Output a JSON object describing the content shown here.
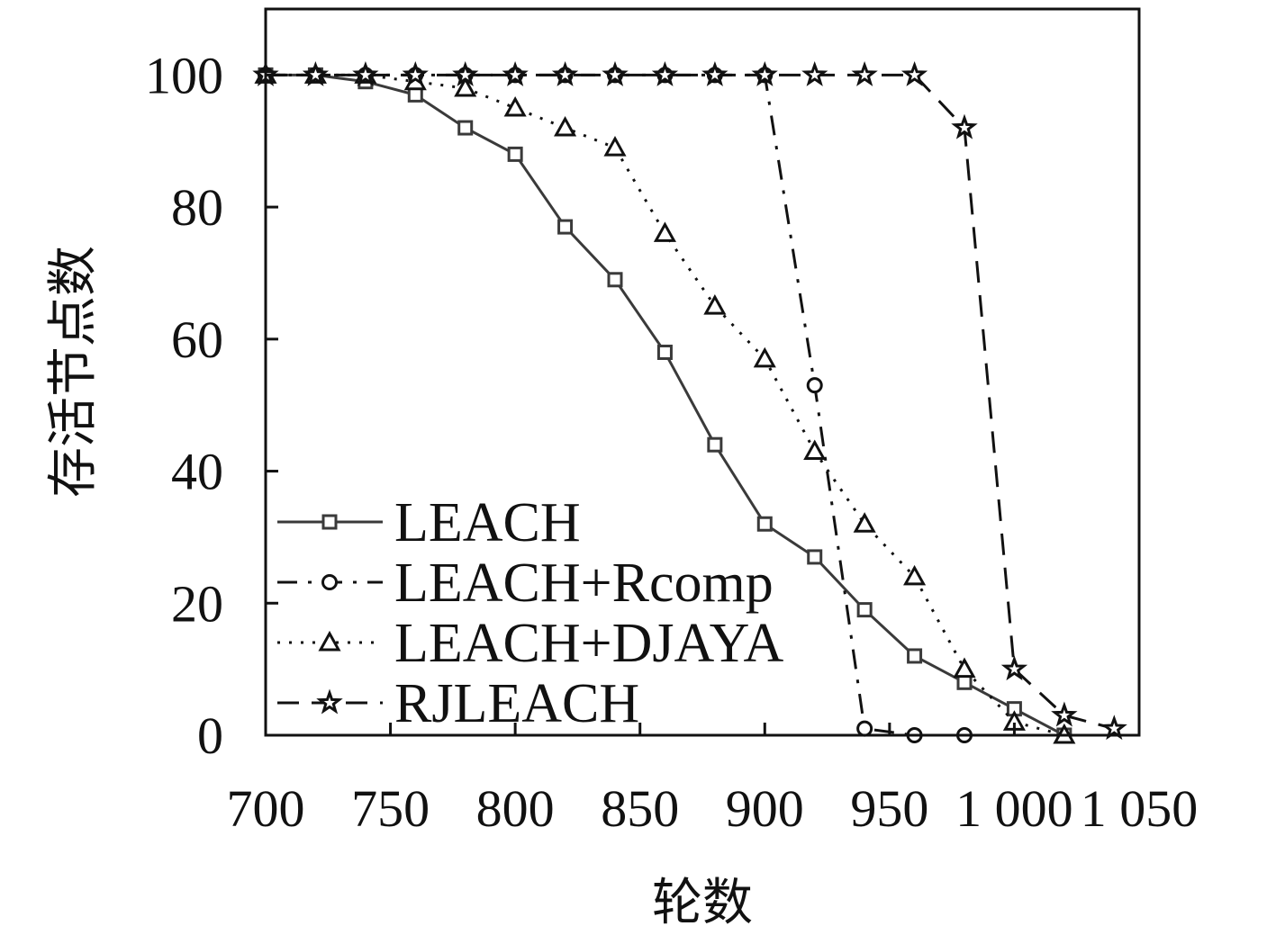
{
  "chart_data": {
    "type": "line",
    "xlabel": "轮数",
    "ylabel": "存活节点数",
    "xlim": [
      700,
      1050
    ],
    "ylim": [
      0,
      110
    ],
    "x_ticks": [
      700,
      750,
      800,
      850,
      900,
      950,
      1000,
      1050
    ],
    "x_tick_labels": [
      "700",
      "750",
      "800",
      "850",
      "900",
      "950",
      "1 000",
      "1 050"
    ],
    "y_ticks": [
      0,
      20,
      40,
      60,
      80,
      100
    ],
    "y_tick_labels": [
      "0",
      "20",
      "40",
      "60",
      "80",
      "100"
    ],
    "grid": false,
    "legend_position": "bottom-left",
    "series": [
      {
        "name": "LEACH",
        "line_style": "solid",
        "marker": "square",
        "color": "#3a3a3a",
        "points": [
          [
            700,
            100
          ],
          [
            720,
            100
          ],
          [
            740,
            99
          ],
          [
            760,
            97
          ],
          [
            780,
            92
          ],
          [
            800,
            88
          ],
          [
            820,
            77
          ],
          [
            840,
            69
          ],
          [
            860,
            58
          ],
          [
            880,
            44
          ],
          [
            900,
            32
          ],
          [
            920,
            27
          ],
          [
            940,
            19
          ],
          [
            960,
            12
          ],
          [
            980,
            8
          ],
          [
            1000,
            4
          ],
          [
            1020,
            0
          ]
        ]
      },
      {
        "name": "LEACH+Rcomp",
        "line_style": "dashdot",
        "marker": "circle",
        "color": "#111111",
        "points": [
          [
            700,
            100
          ],
          [
            720,
            100
          ],
          [
            740,
            100
          ],
          [
            760,
            100
          ],
          [
            780,
            100
          ],
          [
            800,
            100
          ],
          [
            820,
            100
          ],
          [
            840,
            100
          ],
          [
            860,
            100
          ],
          [
            880,
            100
          ],
          [
            900,
            100
          ],
          [
            920,
            53
          ],
          [
            940,
            1
          ],
          [
            960,
            0
          ],
          [
            980,
            0
          ]
        ]
      },
      {
        "name": "LEACH+DJAYA",
        "line_style": "dotted",
        "marker": "triangle",
        "color": "#111111",
        "points": [
          [
            700,
            100
          ],
          [
            720,
            100
          ],
          [
            740,
            100
          ],
          [
            760,
            99
          ],
          [
            780,
            98
          ],
          [
            800,
            95
          ],
          [
            820,
            92
          ],
          [
            840,
            89
          ],
          [
            860,
            76
          ],
          [
            880,
            65
          ],
          [
            900,
            57
          ],
          [
            920,
            43
          ],
          [
            940,
            32
          ],
          [
            960,
            24
          ],
          [
            980,
            10
          ],
          [
            1000,
            2
          ],
          [
            1020,
            0
          ]
        ]
      },
      {
        "name": "RJLEACH",
        "line_style": "dashed",
        "marker": "star",
        "color": "#111111",
        "points": [
          [
            700,
            100
          ],
          [
            720,
            100
          ],
          [
            740,
            100
          ],
          [
            760,
            100
          ],
          [
            780,
            100
          ],
          [
            800,
            100
          ],
          [
            820,
            100
          ],
          [
            840,
            100
          ],
          [
            860,
            100
          ],
          [
            880,
            100
          ],
          [
            900,
            100
          ],
          [
            920,
            100
          ],
          [
            940,
            100
          ],
          [
            960,
            100
          ],
          [
            980,
            92
          ],
          [
            1000,
            10
          ],
          [
            1020,
            3
          ],
          [
            1040,
            1
          ]
        ]
      }
    ]
  }
}
